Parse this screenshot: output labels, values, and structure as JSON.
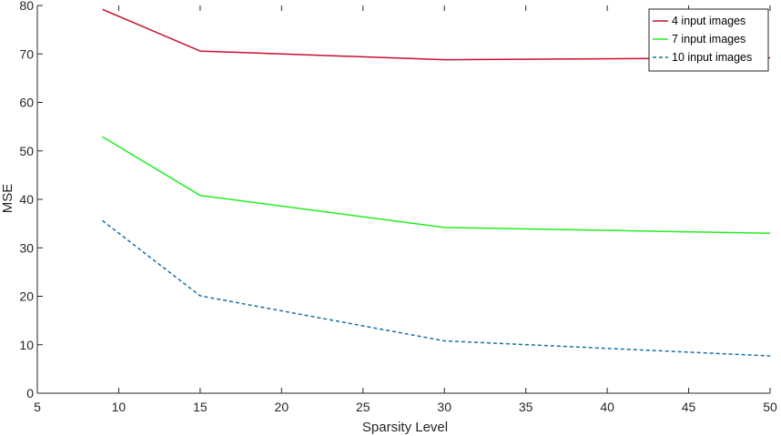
{
  "chart_data": {
    "type": "line",
    "xlabel": "Sparsity Level",
    "ylabel": "MSE",
    "xlim": [
      5,
      50
    ],
    "ylim": [
      0,
      80
    ],
    "xticks": [
      5,
      10,
      15,
      20,
      25,
      30,
      35,
      40,
      45,
      50
    ],
    "yticks": [
      0,
      10,
      20,
      30,
      40,
      50,
      60,
      70,
      80
    ],
    "grid": false,
    "legend_position": "top-right",
    "x": [
      9,
      15,
      30,
      50
    ],
    "series": [
      {
        "name": "4 input images",
        "values": [
          79.2,
          70.6,
          68.8,
          69.2
        ],
        "color": "#c8102e",
        "style": "solid"
      },
      {
        "name": "7 input images",
        "values": [
          52.9,
          40.8,
          34.2,
          33.0
        ],
        "color": "#22ee22",
        "style": "solid"
      },
      {
        "name": "10 input images",
        "values": [
          35.6,
          20.1,
          10.8,
          7.7
        ],
        "color": "#1a6fa0",
        "style": "dashed"
      }
    ]
  }
}
